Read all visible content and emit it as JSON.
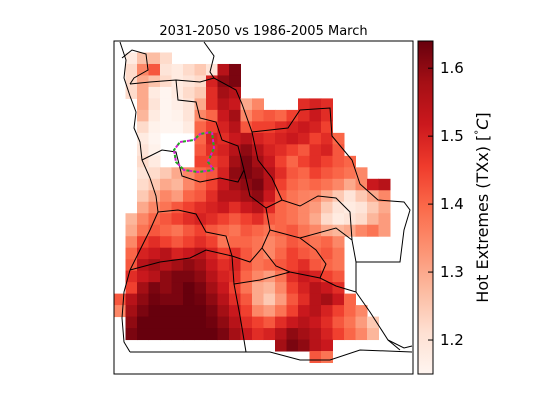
{
  "chart_data": {
    "type": "heatmap",
    "title": "2031-2050 vs 1986-2005 March",
    "colorbar": {
      "label": "Hot Extremes (TXx) [$^\\circ C$]",
      "label_parts": {
        "pre": "Hot Extremes (TXx) [",
        "deg": "°",
        "unit": "C",
        "post": "]"
      },
      "range": [
        1.15,
        1.64
      ],
      "ticks": [
        1.2,
        1.3,
        1.4,
        1.5,
        1.6
      ],
      "tick_labels": [
        "1.2",
        "1.3",
        "1.4",
        "1.5",
        "1.6"
      ],
      "colormap": "Reds"
    },
    "grid": {
      "cols": 26,
      "rows": 29,
      "note_values": "Each row lists 26 cell values (°C); null = no data (outside region)",
      "values": [
        [
          null,
          null,
          null,
          null,
          null,
          null,
          null,
          null,
          null,
          null,
          null,
          null,
          null,
          null,
          null,
          null,
          null,
          null,
          null,
          null,
          null,
          null,
          null,
          null,
          null,
          null
        ],
        [
          null,
          1.18,
          1.26,
          1.27,
          1.22,
          null,
          null,
          null,
          null,
          null,
          null,
          null,
          null,
          null,
          null,
          null,
          null,
          null,
          null,
          null,
          null,
          null,
          null,
          null,
          null,
          null
        ],
        [
          null,
          1.22,
          1.35,
          1.42,
          1.2,
          1.18,
          1.22,
          1.25,
          1.2,
          1.55,
          1.62,
          null,
          null,
          null,
          null,
          null,
          null,
          null,
          null,
          null,
          null,
          null,
          null,
          null,
          null,
          null
        ],
        [
          null,
          1.22,
          1.3,
          1.26,
          1.22,
          1.18,
          1.2,
          1.22,
          1.5,
          1.6,
          1.62,
          null,
          null,
          null,
          null,
          null,
          null,
          null,
          null,
          null,
          null,
          null,
          null,
          null,
          null,
          null
        ],
        [
          null,
          1.22,
          1.3,
          1.18,
          1.15,
          1.18,
          1.22,
          1.25,
          1.48,
          1.58,
          1.55,
          null,
          null,
          null,
          null,
          null,
          null,
          null,
          null,
          null,
          null,
          null,
          null,
          null,
          null,
          null
        ],
        [
          null,
          null,
          1.3,
          1.2,
          1.15,
          1.17,
          1.2,
          1.3,
          1.48,
          1.55,
          1.52,
          1.3,
          1.35,
          null,
          null,
          null,
          1.48,
          1.5,
          1.48,
          null,
          null,
          null,
          null,
          null,
          null,
          null
        ],
        [
          null,
          null,
          1.28,
          1.18,
          1.15,
          1.16,
          1.2,
          1.35,
          1.4,
          1.52,
          1.58,
          1.35,
          1.4,
          1.42,
          1.4,
          1.45,
          1.48,
          1.52,
          1.48,
          null,
          null,
          null,
          null,
          null,
          null,
          null
        ],
        [
          null,
          null,
          1.22,
          1.16,
          1.15,
          1.15,
          1.18,
          1.4,
          1.45,
          1.5,
          1.55,
          1.42,
          1.45,
          1.45,
          1.48,
          1.5,
          1.52,
          1.5,
          1.45,
          null,
          null,
          null,
          null,
          null,
          null,
          null
        ],
        [
          null,
          null,
          1.18,
          1.15,
          null,
          null,
          null,
          1.4,
          1.5,
          1.48,
          1.52,
          1.55,
          1.5,
          1.48,
          1.5,
          1.52,
          1.5,
          1.45,
          1.48,
          1.4,
          null,
          null,
          null,
          null,
          null,
          null
        ],
        [
          null,
          null,
          1.2,
          1.16,
          null,
          null,
          null,
          1.42,
          1.48,
          1.5,
          1.55,
          1.6,
          1.55,
          1.5,
          1.48,
          1.45,
          1.42,
          1.48,
          1.5,
          1.42,
          null,
          null,
          null,
          null,
          null,
          null
        ],
        [
          null,
          null,
          1.22,
          1.18,
          null,
          null,
          null,
          1.45,
          1.45,
          1.48,
          1.58,
          1.62,
          1.58,
          1.52,
          1.45,
          1.4,
          1.45,
          1.48,
          1.45,
          1.42,
          1.4,
          null,
          null,
          null,
          null,
          null
        ],
        [
          null,
          null,
          1.2,
          1.22,
          1.25,
          1.3,
          1.35,
          1.4,
          1.42,
          1.5,
          1.6,
          1.62,
          1.6,
          1.55,
          1.48,
          1.42,
          1.4,
          1.45,
          1.42,
          1.4,
          1.38,
          1.35,
          null,
          null,
          null,
          null
        ],
        [
          null,
          null,
          1.22,
          1.25,
          1.3,
          1.28,
          1.35,
          1.4,
          1.45,
          1.52,
          1.58,
          1.6,
          1.62,
          1.55,
          1.45,
          1.4,
          1.38,
          1.4,
          1.38,
          1.35,
          1.3,
          1.35,
          1.52,
          1.55,
          null,
          null
        ],
        [
          null,
          null,
          1.25,
          1.3,
          1.35,
          1.32,
          1.4,
          1.42,
          1.48,
          1.55,
          1.55,
          1.58,
          1.6,
          1.52,
          1.42,
          1.38,
          1.36,
          1.35,
          1.3,
          1.25,
          1.2,
          1.25,
          1.3,
          1.35,
          null,
          null
        ],
        [
          null,
          null,
          1.3,
          1.35,
          1.38,
          1.42,
          1.45,
          1.48,
          1.5,
          1.52,
          1.48,
          1.52,
          1.55,
          1.48,
          1.4,
          1.38,
          1.35,
          1.32,
          1.25,
          1.2,
          1.18,
          1.2,
          1.25,
          1.3,
          null,
          null
        ],
        [
          null,
          1.28,
          1.35,
          1.4,
          1.42,
          1.45,
          1.48,
          1.5,
          1.48,
          1.45,
          1.42,
          1.45,
          1.48,
          1.42,
          1.4,
          1.38,
          1.35,
          1.3,
          1.22,
          1.18,
          1.2,
          1.22,
          1.28,
          1.32,
          null,
          null
        ],
        [
          null,
          1.3,
          1.38,
          1.42,
          1.4,
          1.38,
          1.42,
          1.45,
          1.42,
          1.4,
          1.38,
          1.42,
          1.4,
          1.38,
          1.4,
          1.42,
          1.38,
          1.35,
          1.3,
          1.28,
          1.3,
          1.35,
          1.38,
          1.32,
          null,
          null
        ],
        [
          null,
          1.35,
          1.45,
          1.48,
          1.45,
          1.42,
          1.45,
          1.48,
          1.45,
          1.38,
          1.4,
          1.4,
          1.38,
          1.35,
          1.38,
          1.42,
          1.4,
          1.38,
          1.4,
          1.35,
          null,
          null,
          null,
          null,
          null,
          null
        ],
        [
          null,
          1.4,
          1.5,
          1.52,
          1.55,
          1.5,
          1.52,
          1.55,
          1.5,
          1.45,
          1.48,
          1.42,
          1.38,
          1.35,
          1.4,
          1.45,
          1.42,
          1.4,
          1.42,
          1.38,
          null,
          null,
          null,
          null,
          null,
          null
        ],
        [
          null,
          1.42,
          1.55,
          1.58,
          1.55,
          1.58,
          1.6,
          1.58,
          1.52,
          1.48,
          1.5,
          1.42,
          1.38,
          1.4,
          1.42,
          1.45,
          1.48,
          1.42,
          1.4,
          1.38,
          null,
          null,
          null,
          null,
          null,
          null
        ],
        [
          null,
          1.48,
          1.52,
          1.55,
          1.6,
          1.62,
          1.62,
          1.6,
          1.55,
          1.5,
          1.48,
          1.4,
          1.35,
          1.32,
          1.38,
          1.48,
          1.52,
          1.5,
          1.45,
          1.42,
          null,
          null,
          null,
          null,
          null,
          null
        ],
        [
          null,
          1.45,
          1.58,
          1.62,
          1.6,
          1.62,
          1.64,
          1.62,
          1.58,
          1.52,
          1.45,
          1.38,
          1.3,
          1.28,
          1.35,
          1.45,
          1.5,
          1.55,
          1.52,
          1.48,
          null,
          null,
          null,
          null,
          null,
          null
        ],
        [
          1.42,
          1.55,
          1.6,
          1.63,
          1.62,
          1.62,
          1.64,
          1.63,
          1.6,
          1.55,
          1.48,
          1.42,
          1.3,
          1.25,
          1.32,
          1.42,
          1.48,
          1.55,
          1.58,
          1.52,
          1.4,
          null,
          null,
          null,
          null,
          null
        ],
        [
          1.35,
          1.58,
          1.62,
          1.64,
          1.64,
          1.64,
          1.64,
          1.64,
          1.62,
          1.58,
          1.52,
          1.45,
          1.35,
          1.32,
          1.38,
          1.45,
          1.52,
          1.55,
          1.5,
          1.45,
          1.4,
          1.35,
          null,
          null,
          null,
          null
        ],
        [
          null,
          1.6,
          1.64,
          1.64,
          1.64,
          1.64,
          1.64,
          1.64,
          1.63,
          1.6,
          1.55,
          1.48,
          1.45,
          1.42,
          1.48,
          1.52,
          1.55,
          1.52,
          1.48,
          1.42,
          1.38,
          1.32,
          1.25,
          null,
          null,
          null
        ],
        [
          null,
          1.62,
          1.64,
          1.64,
          1.64,
          1.64,
          1.64,
          1.64,
          1.64,
          1.62,
          1.58,
          1.52,
          1.48,
          1.5,
          1.55,
          1.6,
          1.58,
          1.55,
          1.5,
          1.45,
          1.4,
          1.35,
          1.28,
          null,
          null,
          null
        ],
        [
          null,
          null,
          null,
          null,
          null,
          null,
          null,
          null,
          null,
          null,
          null,
          null,
          null,
          null,
          1.58,
          1.62,
          1.6,
          1.55,
          1.52,
          null,
          null,
          null,
          null,
          null,
          null,
          null
        ],
        [
          null,
          null,
          null,
          null,
          null,
          null,
          null,
          null,
          null,
          null,
          null,
          null,
          null,
          null,
          null,
          null,
          null,
          1.42,
          1.38,
          null,
          null,
          null,
          null,
          null,
          null,
          null
        ],
        [
          null,
          null,
          null,
          null,
          null,
          null,
          null,
          null,
          null,
          null,
          null,
          null,
          null,
          null,
          null,
          null,
          null,
          null,
          null,
          null,
          null,
          null,
          null,
          null,
          null,
          null
        ]
      ]
    },
    "highlight_region_colors": {
      "dash_a": "#d020d0",
      "dash_b": "#22aa22"
    }
  }
}
